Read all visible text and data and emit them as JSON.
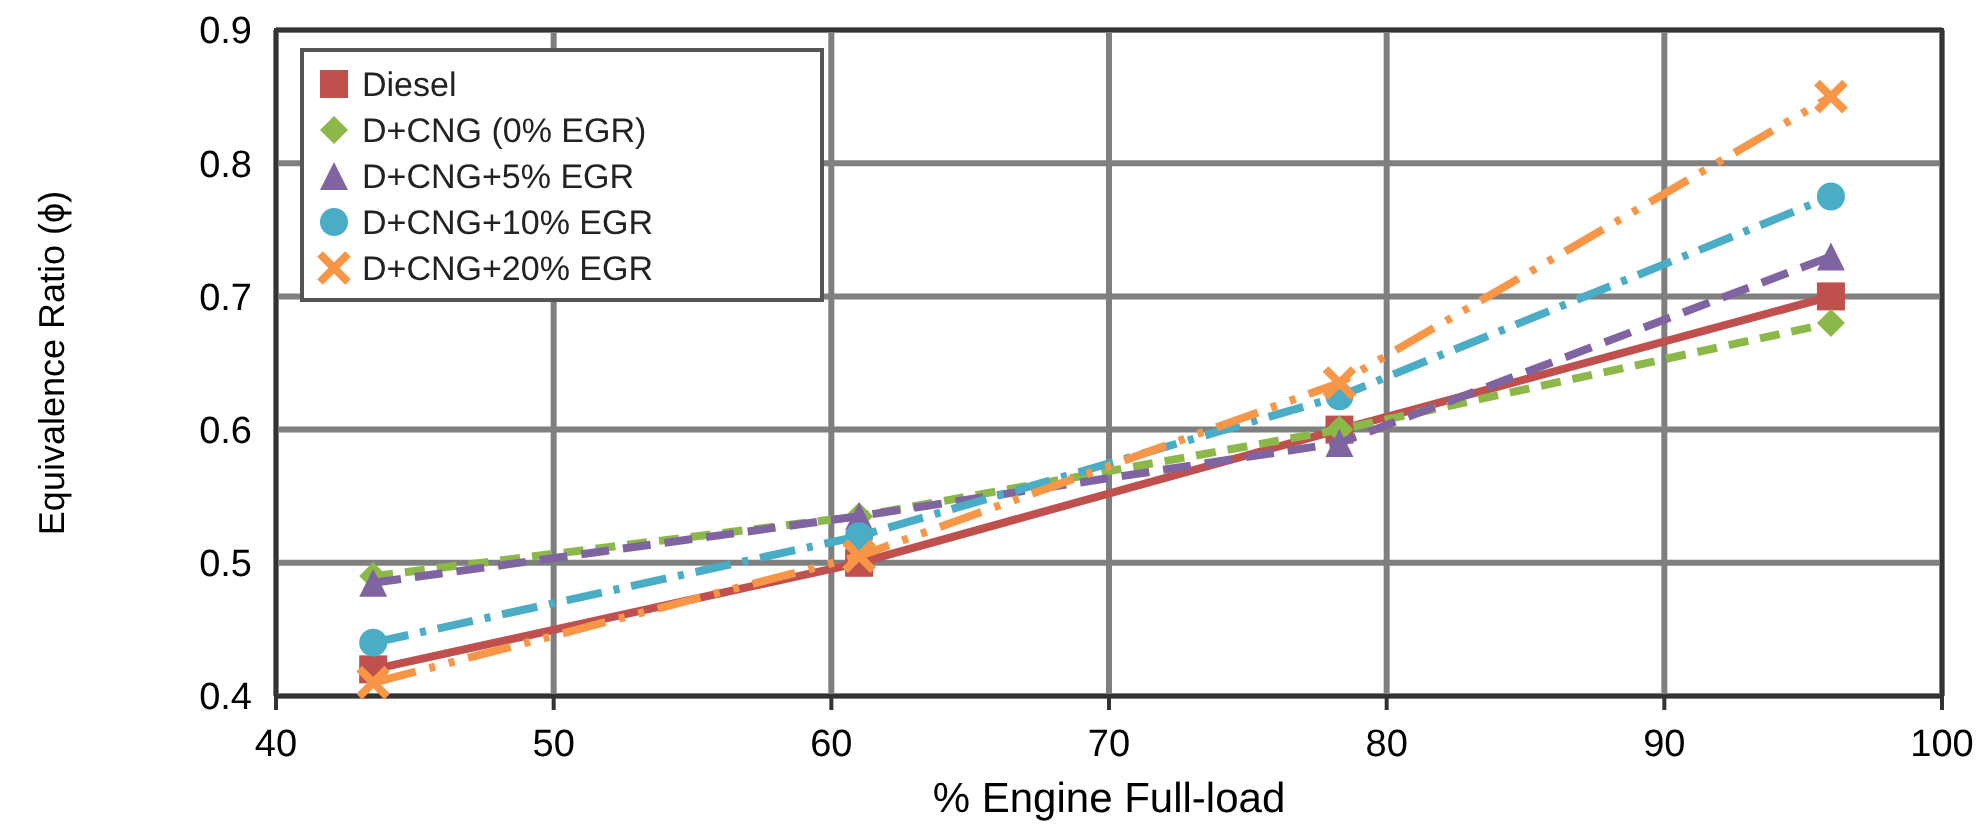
{
  "chart_data": {
    "type": "line",
    "xlabel": "% Engine Full-load",
    "ylabel": "Equivalence Ratio (ϕ)",
    "xlim": [
      40,
      100
    ],
    "xticks": [
      40,
      50,
      60,
      70,
      80,
      90,
      100
    ],
    "ylim": [
      0.4,
      0.9
    ],
    "yticks": [
      0.4,
      0.5,
      0.6,
      0.7,
      0.8,
      0.9
    ],
    "grid": true,
    "legend": "top left",
    "x": [
      43.5,
      61,
      78.3,
      96
    ],
    "series": [
      {
        "name": "Diesel",
        "color": "#c0504d",
        "values": [
          0.42,
          0.5,
          0.6,
          0.7
        ],
        "marker": "square",
        "line_style": "solid"
      },
      {
        "name": "D+CNG (0% EGR)",
        "color": "#8cb84a",
        "values": [
          0.49,
          0.535,
          0.6,
          0.68
        ],
        "marker": "diamond",
        "line_style": "dashed"
      },
      {
        "name": "D+CNG+5% EGR",
        "color": "#8064a2",
        "values": [
          0.485,
          0.535,
          0.59,
          0.73
        ],
        "marker": "triangle",
        "line_style": "dashed"
      },
      {
        "name": "D+CNG+10% EGR",
        "color": "#4bacc6",
        "values": [
          0.44,
          0.52,
          0.625,
          0.775
        ],
        "marker": "circle",
        "line_style": "dashed"
      },
      {
        "name": "D+CNG+20% EGR",
        "color": "#f79646",
        "values": [
          0.41,
          0.505,
          0.635,
          0.85
        ],
        "marker": "cross",
        "line_style": "dashed"
      }
    ]
  }
}
